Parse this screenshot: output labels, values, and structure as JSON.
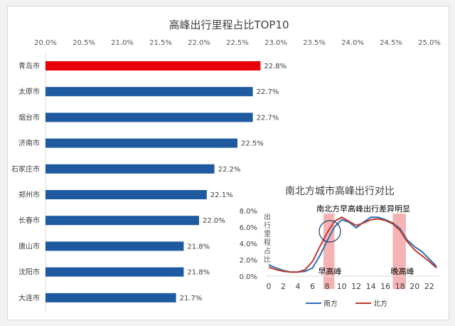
{
  "chart_data": [
    {
      "type": "bar",
      "orientation": "horizontal",
      "title": "高峰出行里程占比TOP10",
      "categories": [
        "青岛市",
        "太原市",
        "烟台市",
        "济南市",
        "石家庄市",
        "郑州市",
        "长春市",
        "唐山市",
        "沈阳市",
        "大连市"
      ],
      "values": [
        22.8,
        22.7,
        22.7,
        22.5,
        22.2,
        22.1,
        22.0,
        21.8,
        21.8,
        21.7
      ],
      "data_labels": [
        "22.8%",
        "22.7%",
        "22.7%",
        "22.5%",
        "22.2%",
        "22.1%",
        "22.0%",
        "21.8%",
        "21.8%",
        "21.7%"
      ],
      "xlim": [
        20.0,
        25.0
      ],
      "x_ticks": [
        "20.0%",
        "20.5%",
        "21.0%",
        "21.5%",
        "22.0%",
        "22.5%",
        "23.0%",
        "23.5%",
        "24.0%",
        "24.5%",
        "25.0%"
      ],
      "axis_position": "top",
      "colors": {
        "highlight": "#e8000b",
        "default": "#1f5aa0"
      },
      "grid": false
    },
    {
      "type": "line",
      "title": "南北方城市高峰出行对比",
      "ylabel": "出行里程占比",
      "x": [
        0,
        1,
        2,
        3,
        4,
        5,
        6,
        7,
        8,
        9,
        10,
        11,
        12,
        13,
        14,
        15,
        16,
        17,
        18,
        19,
        20,
        21,
        22,
        23
      ],
      "x_ticks": [
        "0",
        "2",
        "4",
        "6",
        "8",
        "10",
        "12",
        "14",
        "16",
        "18",
        "20",
        "22"
      ],
      "y_ticks": [
        "0.0%",
        "2.0%",
        "4.0%",
        "6.0%",
        "8.0%"
      ],
      "ylim": [
        0,
        8
      ],
      "series": [
        {
          "name": "南方",
          "color": "#2e6db4",
          "values": [
            1.4,
            1.0,
            0.7,
            0.5,
            0.5,
            0.6,
            1.0,
            2.5,
            4.3,
            6.0,
            6.9,
            6.6,
            5.9,
            6.6,
            7.2,
            7.2,
            6.9,
            6.5,
            5.8,
            4.4,
            3.6,
            3.0,
            2.1,
            1.2
          ]
        },
        {
          "name": "北方",
          "color": "#c0392b",
          "values": [
            1.1,
            0.8,
            0.6,
            0.5,
            0.5,
            0.8,
            1.8,
            3.6,
            5.3,
            6.7,
            7.2,
            6.7,
            6.2,
            6.5,
            6.9,
            7.0,
            6.8,
            6.4,
            5.6,
            4.2,
            3.2,
            2.5,
            1.8,
            1.0
          ]
        }
      ],
      "annotations": {
        "callout": "南北方早高峰出行差异明显",
        "morning": "早高峰",
        "evening": "晚高峰"
      },
      "bands": [
        [
          7.5,
          9
        ],
        [
          17,
          18.8
        ]
      ],
      "legend": "bottom"
    }
  ]
}
